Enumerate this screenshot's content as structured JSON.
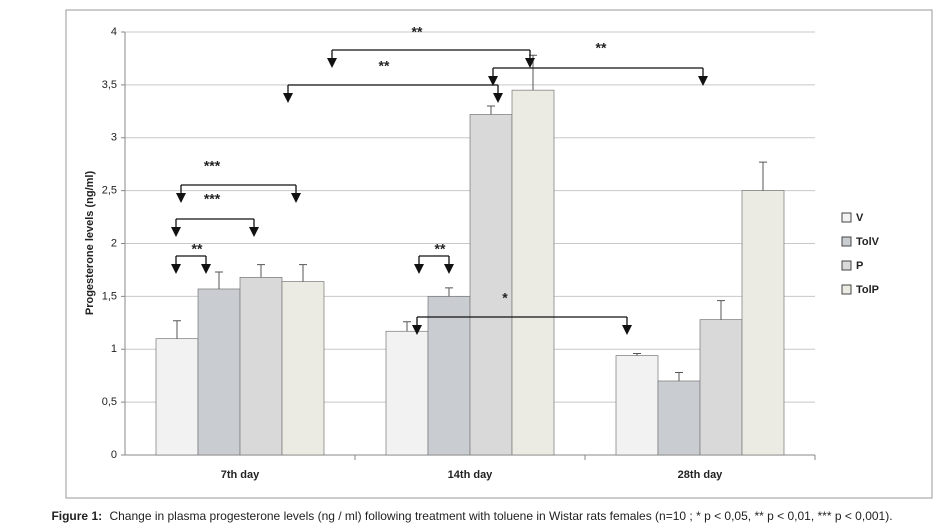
{
  "chart_data": {
    "type": "bar",
    "caption_label": "Figure 1:",
    "caption": "Change in plasma progesterone levels (ng / ml) following treatment with toluene in Wistar rats females (n=10 ; * p < 0,05, ** p < 0,01, *** p < 0,001).",
    "y_label": "Progesterone levels (ng/ml)",
    "categories": [
      "7th day",
      "14th day",
      "28th day"
    ],
    "series": [
      {
        "name": "V",
        "color": "#f2f2f2",
        "values": [
          1.1,
          1.17,
          0.94
        ],
        "errors": [
          0.17,
          0.09,
          0.02
        ]
      },
      {
        "name": "TolV",
        "color": "#c9cdd1",
        "values": [
          1.57,
          1.5,
          0.7
        ],
        "errors": [
          0.16,
          0.08,
          0.08
        ]
      },
      {
        "name": "P",
        "color": "#d9d9d9",
        "values": [
          1.68,
          3.22,
          1.28
        ],
        "errors": [
          0.12,
          0.08,
          0.18
        ]
      },
      {
        "name": "TolP",
        "color": "#ebeae3",
        "values": [
          1.64,
          3.45,
          2.5
        ],
        "errors": [
          0.16,
          0.33,
          0.27
        ]
      }
    ],
    "ylim": [
      0,
      4
    ],
    "yticks": [
      0,
      {
        "value": 0.5,
        "label": "0,5"
      },
      1,
      {
        "value": 1.5,
        "label": "1,5"
      },
      2,
      {
        "value": 2.5,
        "label": "2,5"
      },
      3,
      {
        "value": 3.5,
        "label": "3,5"
      },
      4
    ],
    "grid": true,
    "legend": "right",
    "annotations": [
      "**",
      "**",
      "**",
      "***",
      "***",
      "**",
      "**",
      "*"
    ]
  }
}
